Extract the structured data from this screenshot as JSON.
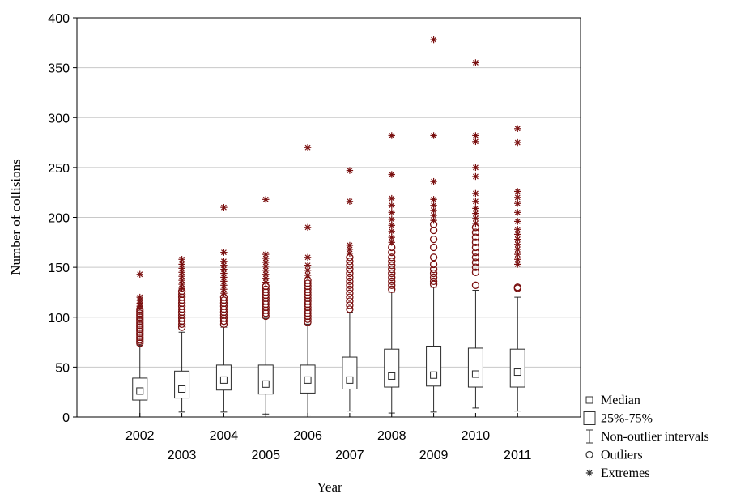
{
  "chart_data": {
    "type": "boxplot",
    "title": "",
    "xlabel": "Year",
    "ylabel": "Number of collisions",
    "ylim": [
      0,
      400
    ],
    "yticks": [
      "0",
      "50",
      "100",
      "150",
      "200",
      "250",
      "300",
      "350",
      "400"
    ],
    "grid": true,
    "legend_position": "bottom-right",
    "categories": [
      "2002",
      "2003",
      "2004",
      "2005",
      "2006",
      "2007",
      "2008",
      "2009",
      "2010",
      "2011"
    ],
    "boxes": [
      {
        "year": "2002",
        "median": 26,
        "q1": 17,
        "q3": 39,
        "whisker_low": 0,
        "whisker_high": 72,
        "outliers": [
          74,
          76,
          78,
          80,
          82,
          84,
          86,
          88,
          90,
          92,
          94,
          96,
          98,
          100,
          102,
          104,
          106,
          108
        ],
        "extremes": [
          111,
          114,
          117,
          120,
          143
        ]
      },
      {
        "year": "2003",
        "median": 28,
        "q1": 19,
        "q3": 46,
        "whisker_low": 5,
        "whisker_high": 85,
        "outliers": [
          90,
          93,
          96,
          99,
          102,
          105,
          108,
          111,
          114,
          117,
          120,
          123,
          126
        ],
        "extremes": [
          129,
          133,
          137,
          141,
          145,
          149,
          153,
          158
        ]
      },
      {
        "year": "2004",
        "median": 37,
        "q1": 27,
        "q3": 52,
        "whisker_low": 5,
        "whisker_high": 90,
        "outliers": [
          93,
          96,
          99,
          102,
          105,
          108,
          111,
          114,
          117,
          120
        ],
        "extremes": [
          124,
          128,
          132,
          136,
          140,
          144,
          148,
          152,
          156,
          165,
          210
        ]
      },
      {
        "year": "2005",
        "median": 33,
        "q1": 23,
        "q3": 52,
        "whisker_low": 3,
        "whisker_high": 99,
        "outliers": [
          101,
          104,
          107,
          110,
          113,
          116,
          119,
          122,
          125,
          128,
          131
        ],
        "extremes": [
          135,
          139,
          143,
          147,
          151,
          155,
          159,
          163,
          218
        ]
      },
      {
        "year": "2006",
        "median": 37,
        "q1": 24,
        "q3": 52,
        "whisker_low": 2,
        "whisker_high": 93,
        "outliers": [
          95,
          98,
          101,
          104,
          107,
          110,
          113,
          116,
          119,
          122,
          125,
          128,
          131,
          134,
          137
        ],
        "extremes": [
          142,
          147,
          152,
          160,
          190,
          270
        ]
      },
      {
        "year": "2007",
        "median": 37,
        "q1": 28,
        "q3": 60,
        "whisker_low": 6,
        "whisker_high": 105,
        "outliers": [
          108,
          112,
          116,
          120,
          124,
          128,
          132,
          136,
          140,
          144,
          148,
          152,
          156,
          160
        ],
        "extremes": [
          164,
          168,
          172,
          216,
          247
        ]
      },
      {
        "year": "2008",
        "median": 41,
        "q1": 30,
        "q3": 68,
        "whisker_low": 4,
        "whisker_high": 125,
        "outliers": [
          128,
          132,
          136,
          140,
          144,
          148,
          152,
          156,
          160,
          165,
          170
        ],
        "extremes": [
          175,
          180,
          186,
          192,
          198,
          205,
          212,
          219,
          243,
          282
        ]
      },
      {
        "year": "2009",
        "median": 42,
        "q1": 31,
        "q3": 71,
        "whisker_low": 5,
        "whisker_high": 130,
        "outliers": [
          133,
          136,
          140,
          144,
          148,
          153,
          160,
          170,
          178,
          187,
          193
        ],
        "extremes": [
          197,
          202,
          207,
          212,
          218,
          236,
          282,
          378
        ]
      },
      {
        "year": "2010",
        "median": 43,
        "q1": 30,
        "q3": 69,
        "whisker_low": 9,
        "whisker_high": 127,
        "outliers": [
          132,
          145,
          150,
          155,
          160,
          165,
          170,
          175,
          180,
          185,
          190
        ],
        "extremes": [
          194,
          199,
          204,
          209,
          216,
          224,
          241,
          250,
          276,
          282,
          355
        ]
      },
      {
        "year": "2011",
        "median": 45,
        "q1": 30,
        "q3": 68,
        "whisker_low": 6,
        "whisker_high": 120,
        "outliers": [
          129,
          130
        ],
        "extremes": [
          153,
          158,
          163,
          168,
          173,
          178,
          183,
          188,
          196,
          205,
          214,
          220,
          226,
          275,
          289
        ]
      }
    ],
    "legend": [
      {
        "marker": "median-square",
        "label": "Median"
      },
      {
        "marker": "box",
        "label": "25%-75%"
      },
      {
        "marker": "whisker",
        "label": "Non-outlier intervals"
      },
      {
        "marker": "circle",
        "label": "Outliers"
      },
      {
        "marker": "asterisk",
        "label": "Extremes"
      }
    ],
    "colors": {
      "points": "#7a1010",
      "box": "#2a2a2a",
      "grid": "#c8c8c8",
      "legend_marker": "#333333"
    }
  }
}
